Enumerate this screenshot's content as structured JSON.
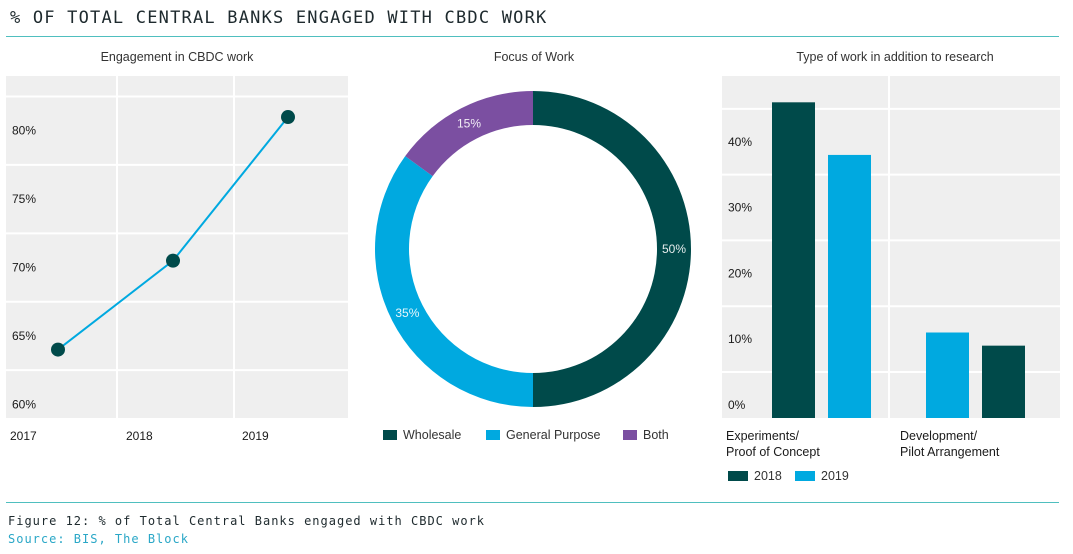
{
  "header": {
    "title": "% OF TOTAL CENTRAL BANKS ENGAGED WITH CBDC WORK"
  },
  "footer": {
    "caption": "Figure 12: % of Total Central Banks engaged with CBDC work",
    "source": "Source: BIS, The Block"
  },
  "colors": {
    "dark_teal": "#004a4a",
    "blue": "#00a9e0",
    "purple": "#7b4fa1",
    "grid_bg": "#efefef",
    "rule": "#4fbfbf"
  },
  "chart_data": [
    {
      "type": "line",
      "title": "Engagement in CBDC work",
      "x": [
        "2017",
        "2018",
        "2019"
      ],
      "y": [
        64,
        70.5,
        81
      ],
      "y_tick_labels": [
        "60%",
        "65%",
        "70%",
        "75%",
        "80%"
      ],
      "ylim": [
        59,
        84
      ],
      "grid": true
    },
    {
      "type": "pie",
      "title": "Focus of Work",
      "labels": [
        "Wholesale",
        "General Purpose",
        "Both"
      ],
      "values": [
        50,
        35,
        15
      ],
      "value_labels": [
        "50%",
        "35%",
        "15%"
      ],
      "legend_position": "bottom"
    },
    {
      "type": "bar",
      "title": "Type of work in addition to research",
      "categories": [
        "Experiments/\nProof of Concept",
        "Development/\nPilot Arrangement"
      ],
      "series": [
        {
          "name": "2018",
          "values": [
            46,
            9
          ]
        },
        {
          "name": "2019",
          "values": [
            38,
            11
          ]
        }
      ],
      "y_tick_labels": [
        "0%",
        "10%",
        "20%",
        "30%",
        "40%"
      ],
      "ylim": [
        -2,
        50
      ],
      "grid": true,
      "legend_position": "bottom"
    }
  ]
}
